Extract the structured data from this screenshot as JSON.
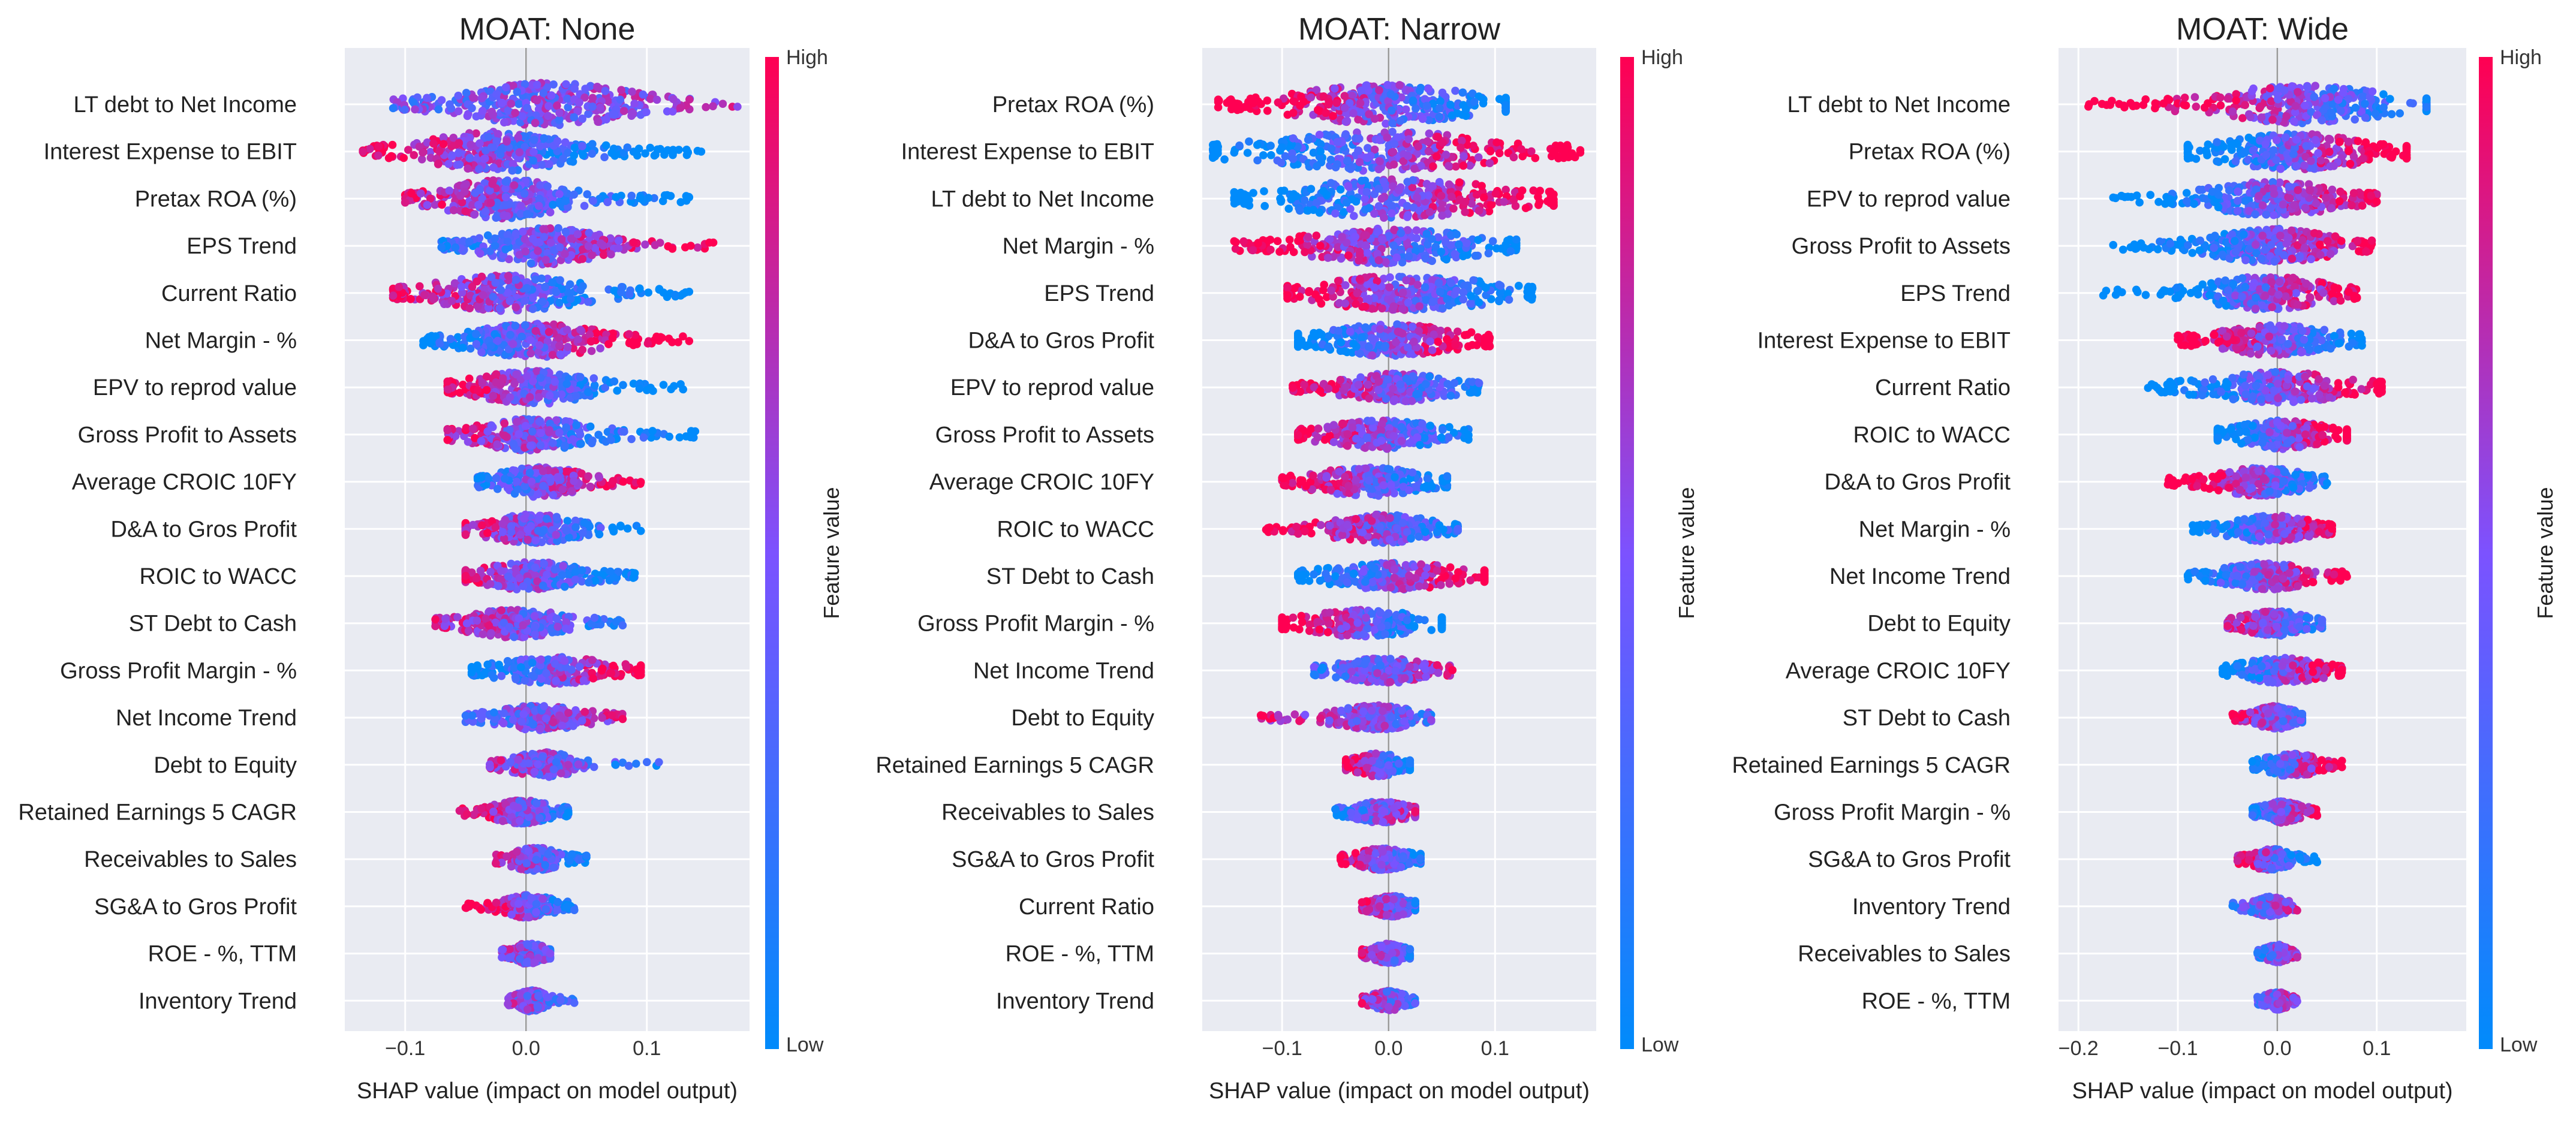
{
  "colors": {
    "background": "#e9ebf2",
    "grid": "#ffffff",
    "zero_line": "#9a9a9a",
    "low": "#008bfb",
    "high": "#ff0052"
  },
  "colorbar": {
    "label": "Feature value",
    "high_label": "High",
    "low_label": "Low"
  },
  "chart_data": [
    {
      "type": "scatter",
      "subtype": "beeswarm",
      "title": "MOAT: None",
      "xlabel": "SHAP value (impact on model output)",
      "xlim": [
        -0.15,
        0.185
      ],
      "xticks": [
        -0.1,
        0.0,
        0.1
      ],
      "xtick_labels": [
        "−0.1",
        "0.0",
        "0.1"
      ],
      "features": [
        {
          "name": "LT debt to Net Income",
          "min": -0.11,
          "max": 0.175,
          "bulk": [
            -0.08,
            0.12
          ],
          "spread": 1.0,
          "tilt": 0.15
        },
        {
          "name": "Interest Expense to EBIT",
          "min": -0.135,
          "max": 0.145,
          "bulk": [
            -0.11,
            0.06
          ],
          "spread": 0.9,
          "tilt": -0.85
        },
        {
          "name": "Pretax ROA (%)",
          "min": -0.1,
          "max": 0.135,
          "bulk": [
            -0.085,
            0.05
          ],
          "spread": 0.9,
          "tilt": -0.6
        },
        {
          "name": "EPS Trend",
          "min": -0.07,
          "max": 0.155,
          "bulk": [
            -0.05,
            0.08
          ],
          "spread": 0.85,
          "tilt": 0.5
        },
        {
          "name": "Current Ratio",
          "min": -0.11,
          "max": 0.135,
          "bulk": [
            -0.1,
            0.07
          ],
          "spread": 0.8,
          "tilt": -0.7
        },
        {
          "name": "Net Margin - %",
          "min": -0.085,
          "max": 0.135,
          "bulk": [
            -0.07,
            0.08
          ],
          "spread": 0.75,
          "tilt": 0.8
        },
        {
          "name": "EPV to reprod value",
          "min": -0.065,
          "max": 0.13,
          "bulk": [
            -0.06,
            0.07
          ],
          "spread": 0.75,
          "tilt": -0.8
        },
        {
          "name": "Gross Profit to Assets",
          "min": -0.065,
          "max": 0.14,
          "bulk": [
            -0.06,
            0.07
          ],
          "spread": 0.7,
          "tilt": -0.6
        },
        {
          "name": "Average CROIC 10FY",
          "min": -0.04,
          "max": 0.095,
          "bulk": [
            -0.035,
            0.06
          ],
          "spread": 0.65,
          "tilt": 0.6
        },
        {
          "name": "D&A to Gros Profit",
          "min": -0.05,
          "max": 0.095,
          "bulk": [
            -0.05,
            0.06
          ],
          "spread": 0.6,
          "tilt": -0.5
        },
        {
          "name": "ROIC to WACC",
          "min": -0.05,
          "max": 0.09,
          "bulk": [
            -0.05,
            0.06
          ],
          "spread": 0.6,
          "tilt": -0.5
        },
        {
          "name": "ST Debt to Cash",
          "min": -0.075,
          "max": 0.08,
          "bulk": [
            -0.065,
            0.05
          ],
          "spread": 0.6,
          "tilt": -0.4
        },
        {
          "name": "Gross Profit Margin - %",
          "min": -0.045,
          "max": 0.095,
          "bulk": [
            -0.04,
            0.09
          ],
          "spread": 0.55,
          "tilt": 0.7
        },
        {
          "name": "Net Income Trend",
          "min": -0.05,
          "max": 0.08,
          "bulk": [
            -0.035,
            0.06
          ],
          "spread": 0.5,
          "tilt": 0.3
        },
        {
          "name": "Debt to Equity",
          "min": -0.03,
          "max": 0.11,
          "bulk": [
            -0.02,
            0.05
          ],
          "spread": 0.5,
          "tilt": -0.3
        },
        {
          "name": "Retained Earnings 5 CAGR",
          "min": -0.055,
          "max": 0.035,
          "bulk": [
            -0.035,
            0.03
          ],
          "spread": 0.45,
          "tilt": -0.6
        },
        {
          "name": "Receivables to Sales",
          "min": -0.025,
          "max": 0.05,
          "bulk": [
            -0.02,
            0.035
          ],
          "spread": 0.45,
          "tilt": -0.5
        },
        {
          "name": "SG&A to Gros Profit",
          "min": -0.05,
          "max": 0.04,
          "bulk": [
            -0.025,
            0.03
          ],
          "spread": 0.45,
          "tilt": -0.6
        },
        {
          "name": "ROE - %, TTM",
          "min": -0.02,
          "max": 0.02,
          "bulk": [
            -0.015,
            0.02
          ],
          "spread": 0.4,
          "tilt": -0.2
        },
        {
          "name": "Inventory Trend",
          "min": -0.015,
          "max": 0.04,
          "bulk": [
            -0.012,
            0.02
          ],
          "spread": 0.4,
          "tilt": -0.2
        }
      ]
    },
    {
      "type": "scatter",
      "subtype": "beeswarm",
      "title": "MOAT: Narrow",
      "xlabel": "SHAP value (impact on model output)",
      "xlim": [
        -0.175,
        0.195
      ],
      "xticks": [
        -0.1,
        0.0,
        0.1
      ],
      "xtick_labels": [
        "−0.1",
        "0.0",
        "0.1"
      ],
      "features": [
        {
          "name": "Pretax ROA (%)",
          "min": -0.16,
          "max": 0.11,
          "bulk": [
            -0.12,
            0.11
          ],
          "spread": 0.9,
          "tilt": -0.85
        },
        {
          "name": "Interest Expense to EBIT",
          "min": -0.165,
          "max": 0.18,
          "bulk": [
            -0.16,
            0.15
          ],
          "spread": 0.9,
          "tilt": 0.85
        },
        {
          "name": "LT debt to Net Income",
          "min": -0.145,
          "max": 0.155,
          "bulk": [
            -0.13,
            0.15
          ],
          "spread": 0.9,
          "tilt": 0.85
        },
        {
          "name": "Net Margin - %",
          "min": -0.145,
          "max": 0.12,
          "bulk": [
            -0.11,
            0.11
          ],
          "spread": 0.8,
          "tilt": -0.7
        },
        {
          "name": "EPS Trend",
          "min": -0.095,
          "max": 0.135,
          "bulk": [
            -0.095,
            0.13
          ],
          "spread": 0.8,
          "tilt": -0.7
        },
        {
          "name": "D&A to Gros Profit",
          "min": -0.085,
          "max": 0.095,
          "bulk": [
            -0.085,
            0.09
          ],
          "spread": 0.7,
          "tilt": 0.8
        },
        {
          "name": "EPV to reprod value",
          "min": -0.09,
          "max": 0.085,
          "bulk": [
            -0.06,
            0.075
          ],
          "spread": 0.6,
          "tilt": -0.5
        },
        {
          "name": "Gross Profit to Assets",
          "min": -0.085,
          "max": 0.075,
          "bulk": [
            -0.08,
            0.07
          ],
          "spread": 0.6,
          "tilt": -0.6
        },
        {
          "name": "Average CROIC 10FY",
          "min": -0.1,
          "max": 0.055,
          "bulk": [
            -0.09,
            0.05
          ],
          "spread": 0.6,
          "tilt": -0.7
        },
        {
          "name": "ROIC to WACC",
          "min": -0.115,
          "max": 0.065,
          "bulk": [
            -0.07,
            0.06
          ],
          "spread": 0.6,
          "tilt": -0.6
        },
        {
          "name": "ST Debt to Cash",
          "min": -0.085,
          "max": 0.09,
          "bulk": [
            -0.08,
            0.09
          ],
          "spread": 0.55,
          "tilt": 0.8
        },
        {
          "name": "Gross Profit Margin - %",
          "min": -0.1,
          "max": 0.05,
          "bulk": [
            -0.1,
            0.05
          ],
          "spread": 0.55,
          "tilt": -0.8
        },
        {
          "name": "Net Income Trend",
          "min": -0.07,
          "max": 0.06,
          "bulk": [
            -0.06,
            0.055
          ],
          "spread": 0.5,
          "tilt": 0.3
        },
        {
          "name": "Debt to Equity",
          "min": -0.12,
          "max": 0.04,
          "bulk": [
            -0.06,
            0.035
          ],
          "spread": 0.5,
          "tilt": -0.3
        },
        {
          "name": "Retained Earnings 5 CAGR",
          "min": -0.04,
          "max": 0.02,
          "bulk": [
            -0.04,
            0.02
          ],
          "spread": 0.45,
          "tilt": -0.6
        },
        {
          "name": "Receivables to Sales",
          "min": -0.05,
          "max": 0.025,
          "bulk": [
            -0.04,
            0.025
          ],
          "spread": 0.4,
          "tilt": 0.4
        },
        {
          "name": "SG&A to Gros Profit",
          "min": -0.045,
          "max": 0.03,
          "bulk": [
            -0.04,
            0.03
          ],
          "spread": 0.4,
          "tilt": -0.5
        },
        {
          "name": "Current Ratio",
          "min": -0.025,
          "max": 0.025,
          "bulk": [
            -0.02,
            0.025
          ],
          "spread": 0.4,
          "tilt": -0.4
        },
        {
          "name": "ROE - %, TTM",
          "min": -0.025,
          "max": 0.02,
          "bulk": [
            -0.02,
            0.02
          ],
          "spread": 0.35,
          "tilt": -0.3
        },
        {
          "name": "Inventory Trend",
          "min": -0.025,
          "max": 0.025,
          "bulk": [
            -0.02,
            0.02
          ],
          "spread": 0.35,
          "tilt": -0.3
        }
      ]
    },
    {
      "type": "scatter",
      "subtype": "beeswarm",
      "title": "MOAT: Wide",
      "xlabel": "SHAP value (impact on model output)",
      "xlim": [
        -0.22,
        0.19
      ],
      "xticks": [
        -0.2,
        -0.1,
        0.0,
        0.1
      ],
      "xtick_labels": [
        "−0.2",
        "−0.1",
        "0.0",
        "0.1"
      ],
      "features": [
        {
          "name": "LT debt to Net Income",
          "min": -0.19,
          "max": 0.15,
          "bulk": [
            -0.1,
            0.15
          ],
          "spread": 0.85,
          "tilt": -0.8
        },
        {
          "name": "Pretax ROA (%)",
          "min": -0.09,
          "max": 0.13,
          "bulk": [
            -0.09,
            0.13
          ],
          "spread": 0.8,
          "tilt": 0.85
        },
        {
          "name": "EPV to reprod value",
          "min": -0.165,
          "max": 0.1,
          "bulk": [
            -0.1,
            0.09
          ],
          "spread": 0.75,
          "tilt": 0.8
        },
        {
          "name": "Gross Profit to Assets",
          "min": -0.165,
          "max": 0.095,
          "bulk": [
            -0.09,
            0.08
          ],
          "spread": 0.75,
          "tilt": 0.8
        },
        {
          "name": "EPS Trend",
          "min": -0.175,
          "max": 0.08,
          "bulk": [
            -0.09,
            0.07
          ],
          "spread": 0.75,
          "tilt": 0.8
        },
        {
          "name": "Interest Expense to EBIT",
          "min": -0.1,
          "max": 0.085,
          "bulk": [
            -0.08,
            0.08
          ],
          "spread": 0.65,
          "tilt": -0.7
        },
        {
          "name": "Current Ratio",
          "min": -0.13,
          "max": 0.105,
          "bulk": [
            -0.1,
            0.1
          ],
          "spread": 0.65,
          "tilt": 0.8
        },
        {
          "name": "ROIC to WACC",
          "min": -0.06,
          "max": 0.07,
          "bulk": [
            -0.06,
            0.07
          ],
          "spread": 0.6,
          "tilt": 0.7
        },
        {
          "name": "D&A to Gros Profit",
          "min": -0.11,
          "max": 0.05,
          "bulk": [
            -0.075,
            0.045
          ],
          "spread": 0.6,
          "tilt": -0.7
        },
        {
          "name": "Net Margin - %",
          "min": -0.085,
          "max": 0.055,
          "bulk": [
            -0.06,
            0.05
          ],
          "spread": 0.55,
          "tilt": 0.7
        },
        {
          "name": "Net Income Trend",
          "min": -0.09,
          "max": 0.07,
          "bulk": [
            -0.07,
            0.05
          ],
          "spread": 0.55,
          "tilt": 0.6
        },
        {
          "name": "Debt to Equity",
          "min": -0.05,
          "max": 0.045,
          "bulk": [
            -0.045,
            0.04
          ],
          "spread": 0.5,
          "tilt": -0.4
        },
        {
          "name": "Average CROIC 10FY",
          "min": -0.055,
          "max": 0.065,
          "bulk": [
            -0.05,
            0.06
          ],
          "spread": 0.5,
          "tilt": 0.7
        },
        {
          "name": "ST Debt to Cash",
          "min": -0.045,
          "max": 0.025,
          "bulk": [
            -0.03,
            0.025
          ],
          "spread": 0.45,
          "tilt": -0.4
        },
        {
          "name": "Retained Earnings 5 CAGR",
          "min": -0.025,
          "max": 0.065,
          "bulk": [
            -0.02,
            0.05
          ],
          "spread": 0.45,
          "tilt": 0.7
        },
        {
          "name": "Gross Profit Margin - %",
          "min": -0.025,
          "max": 0.04,
          "bulk": [
            -0.02,
            0.03
          ],
          "spread": 0.4,
          "tilt": 0.5
        },
        {
          "name": "SG&A to Gros Profit",
          "min": -0.04,
          "max": 0.04,
          "bulk": [
            -0.035,
            0.02
          ],
          "spread": 0.4,
          "tilt": -0.6
        },
        {
          "name": "Inventory Trend",
          "min": -0.045,
          "max": 0.02,
          "bulk": [
            -0.03,
            0.015
          ],
          "spread": 0.35,
          "tilt": 0.3
        },
        {
          "name": "Receivables to Sales",
          "min": -0.02,
          "max": 0.02,
          "bulk": [
            -0.015,
            0.015
          ],
          "spread": 0.3,
          "tilt": 0.3
        },
        {
          "name": "ROE - %, TTM",
          "min": -0.02,
          "max": 0.02,
          "bulk": [
            -0.015,
            0.015
          ],
          "spread": 0.3,
          "tilt": 0.2
        }
      ]
    }
  ]
}
